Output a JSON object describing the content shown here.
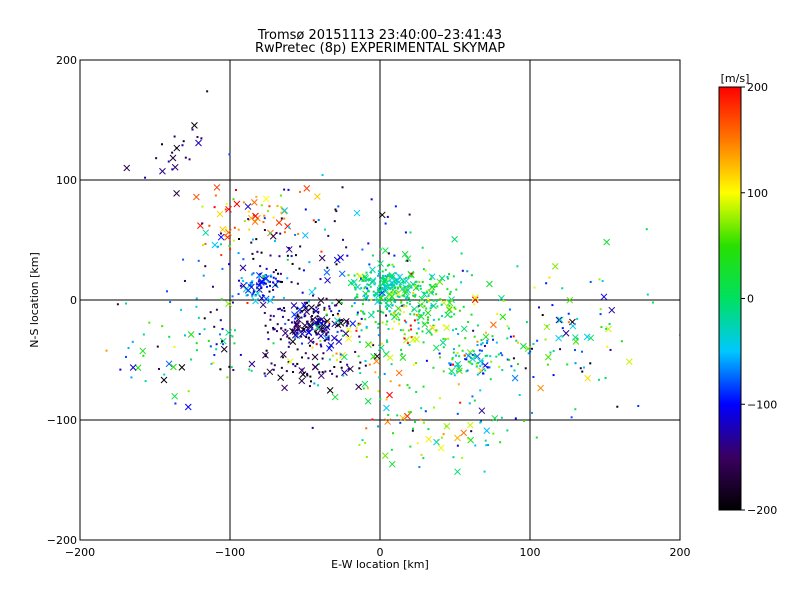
{
  "chart_data": {
    "type": "scatter",
    "title": "Tromsø 20151113 23:40:00–23:41:43",
    "subtitle": "RwPretec (8p) EXPERIMENTAL SKYMAP",
    "xlabel": "E-W location [km]",
    "ylabel": "N-S location [km]",
    "xlim": [
      -200,
      200
    ],
    "ylim": [
      -200,
      200
    ],
    "xticks": [
      -200,
      -100,
      0,
      100,
      200
    ],
    "yticks": [
      -200,
      -100,
      0,
      100,
      200
    ],
    "grid": true,
    "colorbar": {
      "label": "[m/s]",
      "min": -200,
      "max": 200,
      "ticks": [
        200,
        100,
        0,
        -100,
        -200
      ],
      "colormap": [
        "#000000",
        "#3a0060",
        "#0000ff",
        "#00c8ff",
        "#00e060",
        "#28e000",
        "#ffff00",
        "#ff7800",
        "#ff0000"
      ]
    },
    "clusters": [
      {
        "cx": -45,
        "cy": -20,
        "sx": 14,
        "sy": 10,
        "n": 190,
        "vmean": -150,
        "vspread": 70
      },
      {
        "cx": -80,
        "cy": 10,
        "sx": 8,
        "sy": 6,
        "n": 70,
        "vmean": -90,
        "vspread": 60
      },
      {
        "cx": 5,
        "cy": 10,
        "sx": 12,
        "sy": 8,
        "n": 170,
        "vmean": -20,
        "vspread": 40
      },
      {
        "cx": 25,
        "cy": 0,
        "sx": 22,
        "sy": 18,
        "n": 190,
        "vmean": 20,
        "vspread": 60
      },
      {
        "cx": 60,
        "cy": -50,
        "sx": 10,
        "sy": 8,
        "n": 70,
        "vmean": -40,
        "vspread": 90
      },
      {
        "cx": 10,
        "cy": -30,
        "sx": 40,
        "sy": 25,
        "n": 150,
        "vmean": 60,
        "vspread": 130
      },
      {
        "cx": -90,
        "cy": 70,
        "sx": 20,
        "sy": 15,
        "n": 60,
        "vmean": 150,
        "vspread": 90
      },
      {
        "cx": 40,
        "cy": -110,
        "sx": 30,
        "sy": 15,
        "n": 80,
        "vmean": 20,
        "vspread": 130
      },
      {
        "cx": -60,
        "cy": 40,
        "sx": 40,
        "sy": 25,
        "n": 120,
        "vmean": -120,
        "vspread": 100
      },
      {
        "cx": -130,
        "cy": -40,
        "sx": 25,
        "sy": 20,
        "n": 70,
        "vmean": -60,
        "vspread": 150
      },
      {
        "cx": 110,
        "cy": -40,
        "sx": 30,
        "sy": 25,
        "n": 80,
        "vmean": -60,
        "vspread": 150
      },
      {
        "cx": -130,
        "cy": 120,
        "sx": 15,
        "sy": 20,
        "n": 25,
        "vmean": -150,
        "vspread": 60
      },
      {
        "cx": 140,
        "cy": -20,
        "sx": 25,
        "sy": 30,
        "n": 25,
        "vmean": 0,
        "vspread": 160
      },
      {
        "cx": -50,
        "cy": -55,
        "sx": 20,
        "sy": 8,
        "n": 60,
        "vmean": -170,
        "vspread": 60
      }
    ]
  }
}
